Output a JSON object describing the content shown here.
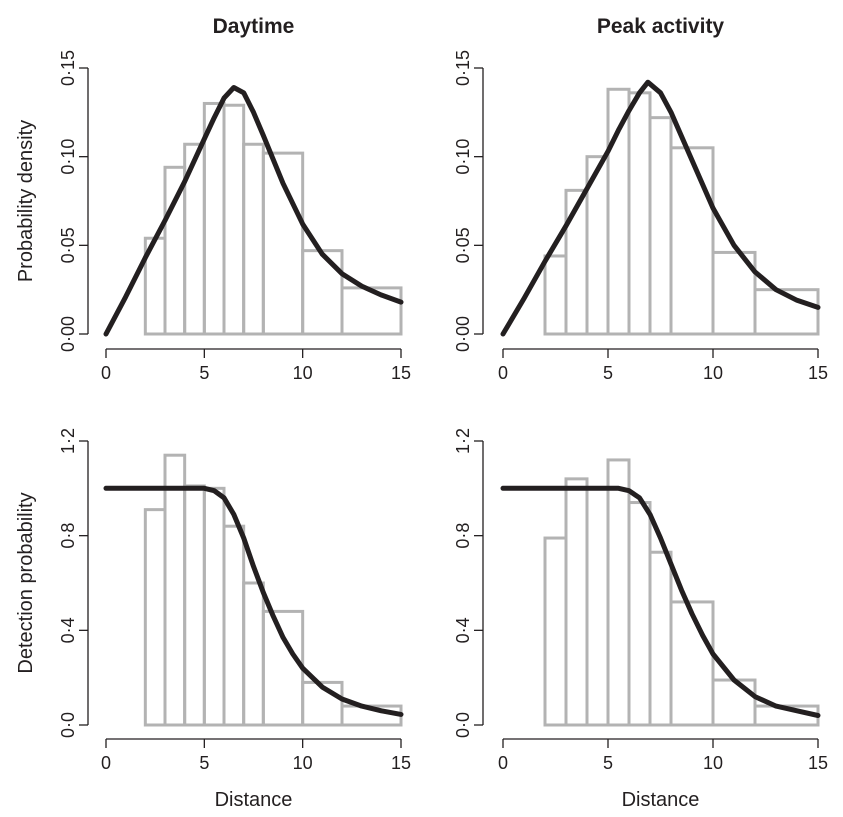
{
  "chart_data": [
    {
      "type": "bar",
      "title": "Daytime",
      "xlabel": "",
      "ylabel": "Probability density",
      "xlim": [
        0,
        15
      ],
      "ylim": [
        0,
        0.15
      ],
      "xticks": [
        "0",
        "5",
        "10",
        "15"
      ],
      "xtick_values": [
        0,
        5,
        10,
        15
      ],
      "yticks": [
        "0·00",
        "0·05",
        "0·10",
        "0·15"
      ],
      "ytick_values": [
        0,
        0.05,
        0.1,
        0.15
      ],
      "bins": [
        {
          "from": 2,
          "to": 3,
          "value": 0.054
        },
        {
          "from": 3,
          "to": 4,
          "value": 0.094
        },
        {
          "from": 4,
          "to": 5,
          "value": 0.107
        },
        {
          "from": 5,
          "to": 6,
          "value": 0.13
        },
        {
          "from": 6,
          "to": 7,
          "value": 0.129
        },
        {
          "from": 7,
          "to": 8,
          "value": 0.107
        },
        {
          "from": 8,
          "to": 10,
          "value": 0.102
        },
        {
          "from": 10,
          "to": 12,
          "value": 0.047
        },
        {
          "from": 12,
          "to": 15,
          "value": 0.026
        }
      ],
      "curve": {
        "x": [
          0,
          1,
          2,
          3,
          4,
          5,
          5.5,
          6,
          6.5,
          7,
          7.5,
          8,
          9,
          10,
          11,
          12,
          13,
          14,
          15
        ],
        "y": [
          0,
          0.021,
          0.043,
          0.064,
          0.086,
          0.11,
          0.122,
          0.133,
          0.139,
          0.136,
          0.125,
          0.112,
          0.085,
          0.062,
          0.045,
          0.034,
          0.027,
          0.022,
          0.018
        ]
      }
    },
    {
      "type": "bar",
      "title": "Peak activity",
      "xlabel": "",
      "ylabel": "",
      "xlim": [
        0,
        15
      ],
      "ylim": [
        0,
        0.15
      ],
      "xticks": [
        "0",
        "5",
        "10",
        "15"
      ],
      "xtick_values": [
        0,
        5,
        10,
        15
      ],
      "yticks": [
        "0·00",
        "0·05",
        "0·10",
        "0·15"
      ],
      "ytick_values": [
        0,
        0.05,
        0.1,
        0.15
      ],
      "bins": [
        {
          "from": 2,
          "to": 3,
          "value": 0.044
        },
        {
          "from": 3,
          "to": 4,
          "value": 0.081
        },
        {
          "from": 4,
          "to": 5,
          "value": 0.1
        },
        {
          "from": 5,
          "to": 6,
          "value": 0.138
        },
        {
          "from": 6,
          "to": 7,
          "value": 0.136
        },
        {
          "from": 7,
          "to": 8,
          "value": 0.122
        },
        {
          "from": 8,
          "to": 10,
          "value": 0.105
        },
        {
          "from": 10,
          "to": 12,
          "value": 0.046
        },
        {
          "from": 12,
          "to": 15,
          "value": 0.025
        }
      ],
      "curve": {
        "x": [
          0,
          1,
          2,
          3,
          4,
          5,
          5.5,
          6,
          6.5,
          6.9,
          7.5,
          8,
          9,
          10,
          11,
          12,
          13,
          14,
          15
        ],
        "y": [
          0,
          0.02,
          0.041,
          0.061,
          0.082,
          0.103,
          0.115,
          0.126,
          0.136,
          0.142,
          0.136,
          0.125,
          0.098,
          0.071,
          0.05,
          0.035,
          0.025,
          0.019,
          0.015
        ]
      }
    },
    {
      "type": "bar",
      "title": "",
      "xlabel": "Distance",
      "ylabel": "Detection probability",
      "xlim": [
        0,
        15
      ],
      "ylim": [
        0,
        1.2
      ],
      "xticks": [
        "0",
        "5",
        "10",
        "15"
      ],
      "xtick_values": [
        0,
        5,
        10,
        15
      ],
      "yticks": [
        "0·0",
        "0·4",
        "0·8",
        "1·2"
      ],
      "ytick_values": [
        0,
        0.4,
        0.8,
        1.2
      ],
      "bins": [
        {
          "from": 2,
          "to": 3,
          "value": 0.91
        },
        {
          "from": 3,
          "to": 4,
          "value": 1.14
        },
        {
          "from": 4,
          "to": 5,
          "value": 1.01
        },
        {
          "from": 5,
          "to": 6,
          "value": 1.0
        },
        {
          "from": 6,
          "to": 7,
          "value": 0.84
        },
        {
          "from": 7,
          "to": 8,
          "value": 0.6
        },
        {
          "from": 8,
          "to": 10,
          "value": 0.48
        },
        {
          "from": 10,
          "to": 12,
          "value": 0.18
        },
        {
          "from": 12,
          "to": 15,
          "value": 0.08
        }
      ],
      "curve": {
        "x": [
          0,
          1,
          2,
          3,
          4,
          5,
          5.5,
          6,
          6.5,
          7,
          7.5,
          8,
          8.5,
          9,
          9.5,
          10,
          11,
          12,
          13,
          14,
          15
        ],
        "y": [
          1.0,
          1.0,
          1.0,
          1.0,
          1.0,
          1.0,
          0.99,
          0.96,
          0.89,
          0.79,
          0.67,
          0.56,
          0.46,
          0.37,
          0.3,
          0.24,
          0.16,
          0.11,
          0.08,
          0.06,
          0.045
        ]
      }
    },
    {
      "type": "bar",
      "title": "",
      "xlabel": "Distance",
      "ylabel": "",
      "xlim": [
        0,
        15
      ],
      "ylim": [
        0,
        1.2
      ],
      "xticks": [
        "0",
        "5",
        "10",
        "15"
      ],
      "xtick_values": [
        0,
        5,
        10,
        15
      ],
      "yticks": [
        "0·0",
        "0·4",
        "0·8",
        "1·2"
      ],
      "ytick_values": [
        0,
        0.4,
        0.8,
        1.2
      ],
      "bins": [
        {
          "from": 2,
          "to": 3,
          "value": 0.79
        },
        {
          "from": 3,
          "to": 4,
          "value": 1.04
        },
        {
          "from": 4,
          "to": 5,
          "value": 1.0
        },
        {
          "from": 5,
          "to": 6,
          "value": 1.12
        },
        {
          "from": 6,
          "to": 7,
          "value": 0.94
        },
        {
          "from": 7,
          "to": 8,
          "value": 0.73
        },
        {
          "from": 8,
          "to": 10,
          "value": 0.52
        },
        {
          "from": 10,
          "to": 12,
          "value": 0.19
        },
        {
          "from": 12,
          "to": 15,
          "value": 0.08
        }
      ],
      "curve": {
        "x": [
          0,
          1,
          2,
          3,
          4,
          5,
          5.5,
          6,
          6.5,
          7,
          7.5,
          8,
          8.5,
          9,
          9.5,
          10,
          11,
          12,
          13,
          14,
          15
        ],
        "y": [
          1.0,
          1.0,
          1.0,
          1.0,
          1.0,
          1.0,
          1.0,
          0.99,
          0.96,
          0.89,
          0.79,
          0.68,
          0.57,
          0.47,
          0.38,
          0.3,
          0.19,
          0.12,
          0.08,
          0.06,
          0.04
        ]
      }
    }
  ]
}
